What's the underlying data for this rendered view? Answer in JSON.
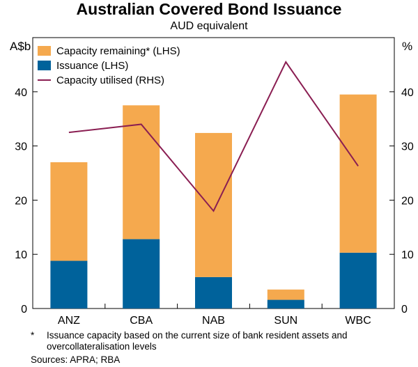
{
  "header": {
    "title": "Australian Covered Bond Issuance",
    "subtitle": "AUD equivalent"
  },
  "axes": {
    "left_unit": "A$b",
    "right_unit": "%"
  },
  "notes": {
    "footnote_marker": "*",
    "footnote": "Issuance capacity based on the current size of bank resident assets and overcollateralisation levels",
    "sources": "Sources: APRA; RBA"
  },
  "colors": {
    "capacity_remaining": "#f5a94e",
    "issuance": "#00629b",
    "capacity_utilised": "#8a1e52"
  },
  "chart_data": {
    "type": "bar",
    "stacked": true,
    "title": "Australian Covered Bond Issuance",
    "subtitle": "AUD equivalent",
    "categories": [
      "ANZ",
      "CBA",
      "NAB",
      "SUN",
      "WBC"
    ],
    "series": [
      {
        "name": "Issuance (LHS)",
        "kind": "bar",
        "axis": "left",
        "values": [
          8.8,
          12.8,
          5.8,
          1.6,
          10.3
        ]
      },
      {
        "name": "Capacity remaining* (LHS)",
        "kind": "bar",
        "axis": "left",
        "values": [
          18.2,
          24.7,
          26.6,
          1.9,
          29.2
        ]
      },
      {
        "name": "Capacity utilised (RHS)",
        "kind": "line",
        "axis": "right",
        "values": [
          32.5,
          34.0,
          18.0,
          45.5,
          26.3
        ]
      }
    ],
    "legend_order": [
      "Capacity remaining* (LHS)",
      "Issuance (LHS)",
      "Capacity utilised (RHS)"
    ],
    "ylabel_left": "A$b",
    "ylabel_right": "%",
    "ylim_left": [
      0,
      50
    ],
    "ylim_right": [
      0,
      50
    ],
    "yticks_left": [
      0,
      10,
      20,
      30,
      40
    ],
    "yticks_right": [
      0,
      10,
      20,
      30,
      40
    ],
    "grid": false,
    "legend_position": "top-left"
  }
}
